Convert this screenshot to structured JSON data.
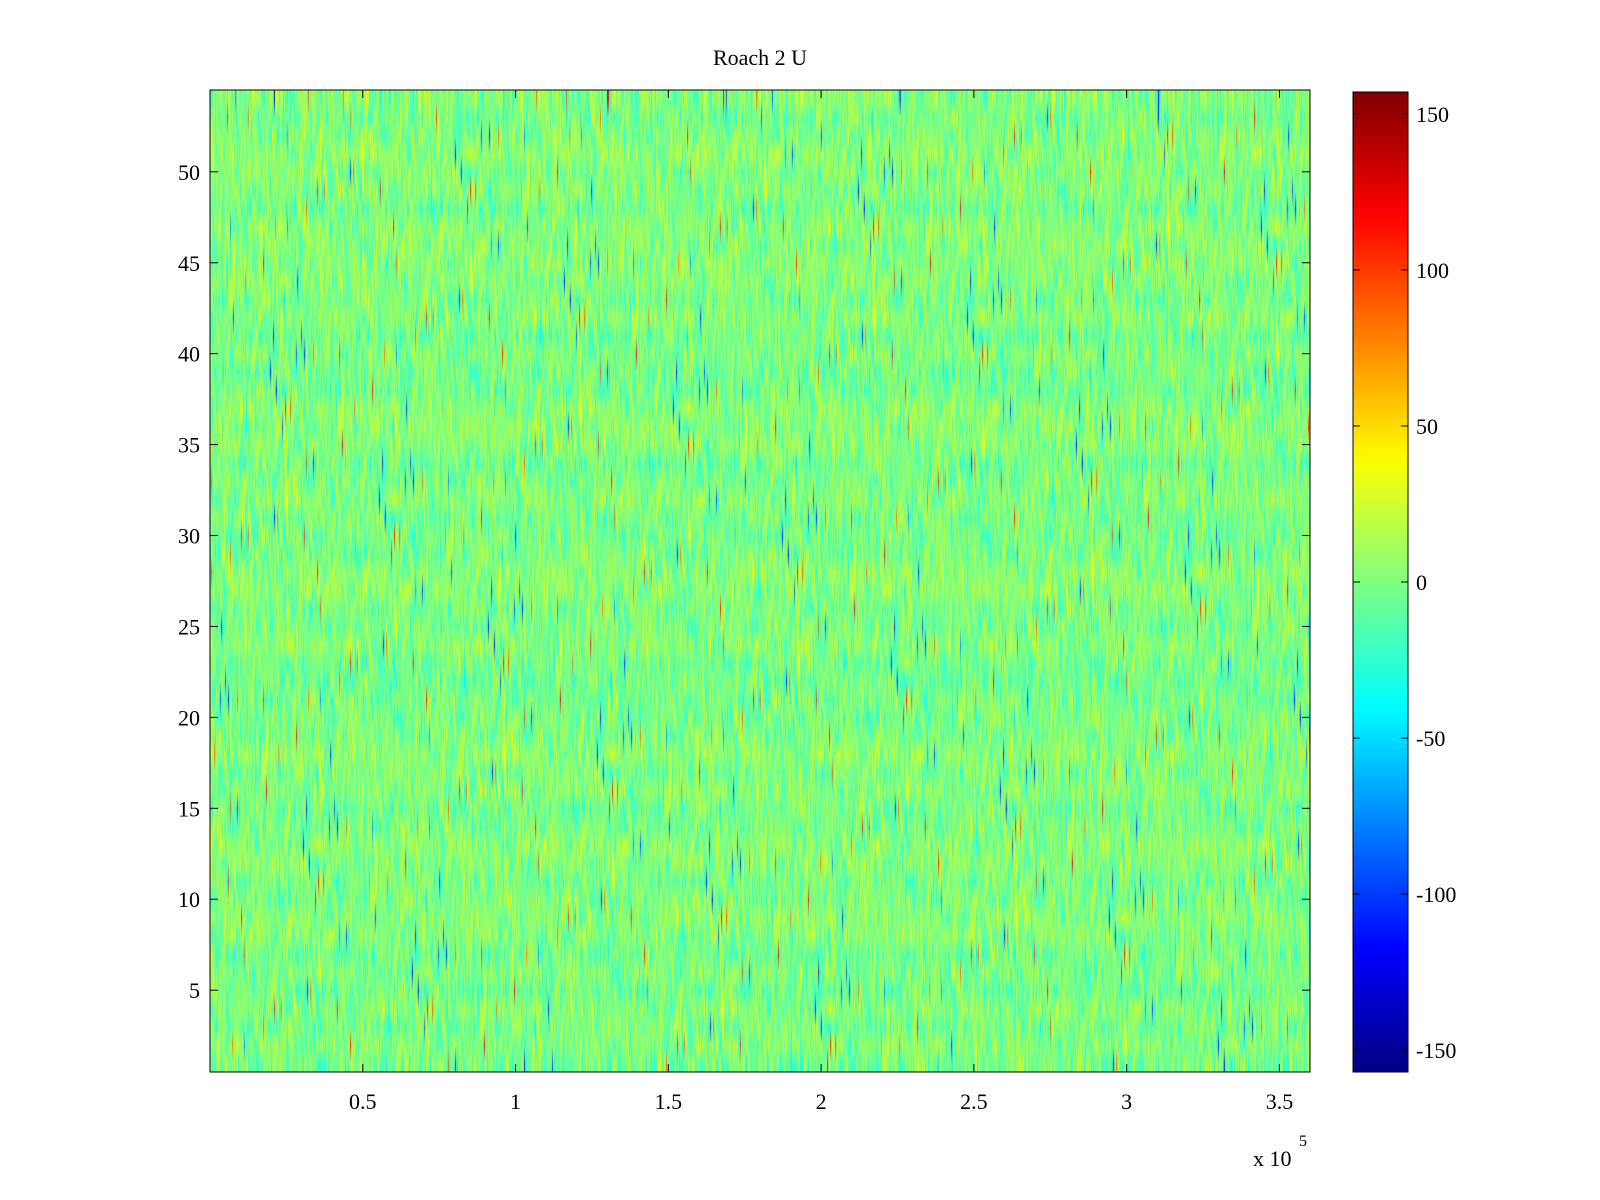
{
  "chart_data": {
    "type": "heatmap",
    "title": "Roach 2 U",
    "xlabel": "",
    "ylabel": "",
    "x_exponent_label": "x 10",
    "x_exponent_power": "5",
    "x_scale": 100000,
    "xlim": [
      0,
      3.6
    ],
    "ylim": [
      0.5,
      54.5
    ],
    "x_ticks": [
      0.5,
      1,
      1.5,
      2,
      2.5,
      3,
      3.5
    ],
    "x_tick_labels": [
      "0.5",
      "1",
      "1.5",
      "2",
      "2.5",
      "3",
      "3.5"
    ],
    "y_ticks": [
      5,
      10,
      15,
      20,
      25,
      30,
      35,
      40,
      45,
      50
    ],
    "y_tick_labels": [
      "5",
      "10",
      "15",
      "20",
      "25",
      "30",
      "35",
      "40",
      "45",
      "50"
    ],
    "rows": 54,
    "colormap": "jet",
    "clim": [
      -157,
      157
    ],
    "colorbar_ticks": [
      150,
      100,
      50,
      0,
      -50,
      -100,
      -150
    ],
    "colorbar_tick_labels": [
      "150",
      "100",
      "50",
      "0",
      "-50",
      "-100",
      "-150"
    ],
    "dominant_value_range": [
      -40,
      40
    ],
    "grid": false
  }
}
